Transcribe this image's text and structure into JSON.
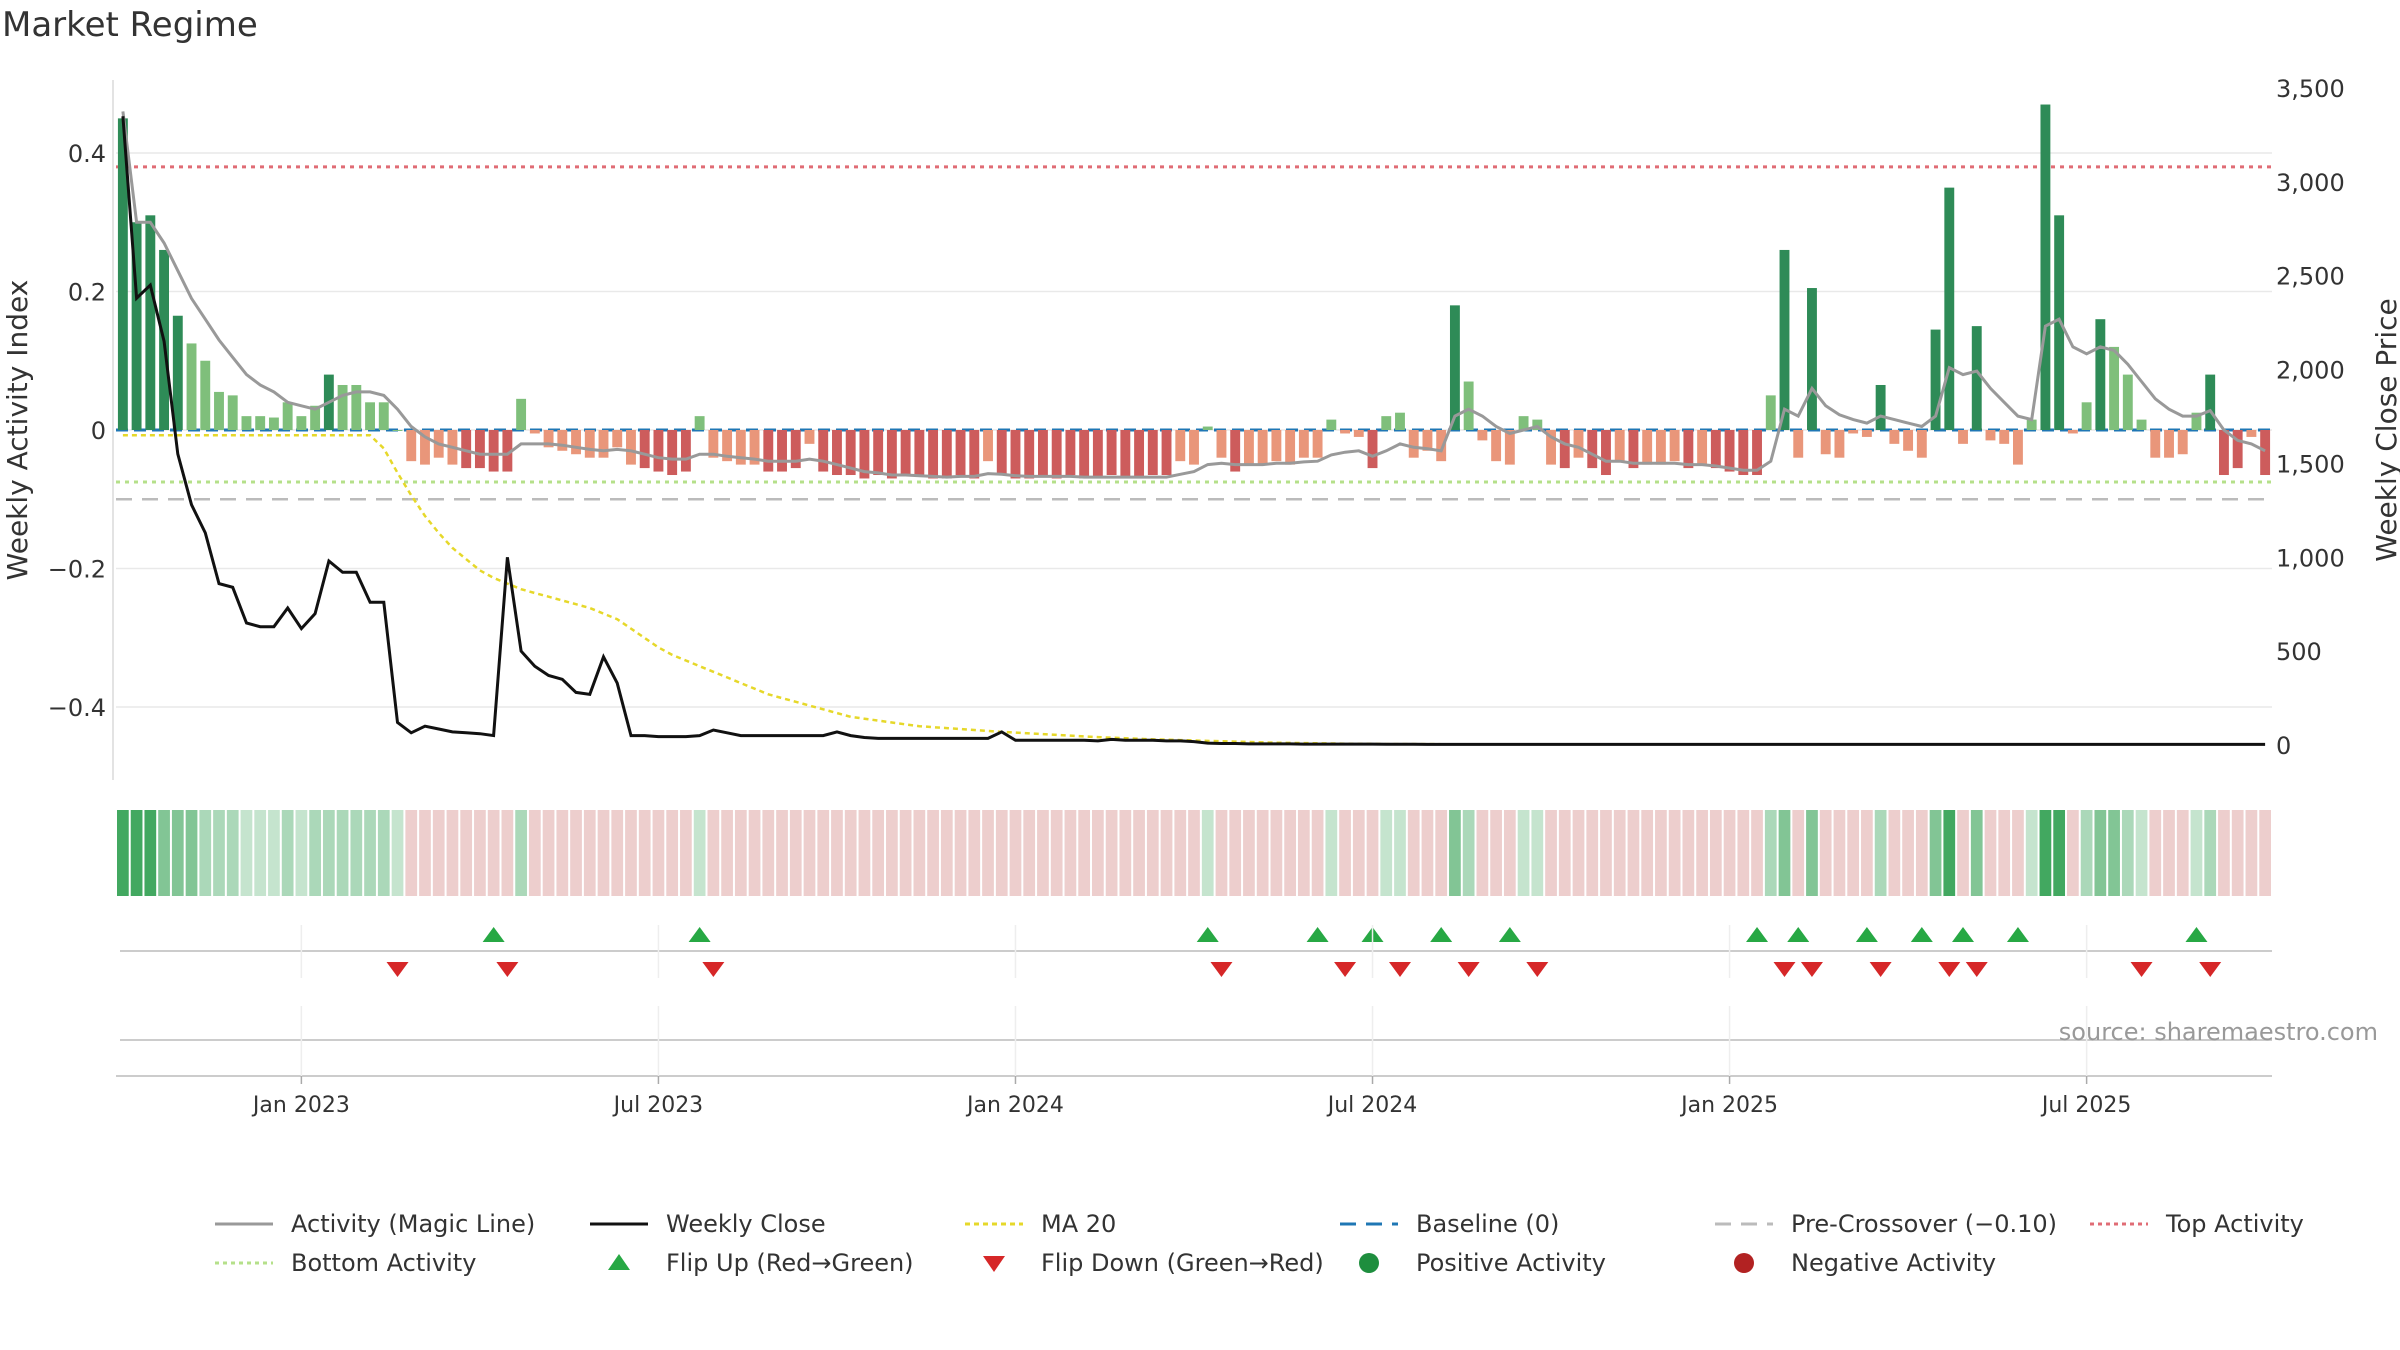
{
  "chart_data": {
    "type": "bar",
    "title": "Market Regime",
    "source_note": "source: sharemaestro.com",
    "ylabel_left": "Weekly Activity Index",
    "ylabel_right": "Weekly Close Price",
    "ylim_left": [
      -0.5,
      0.5
    ],
    "ylim_right": [
      0,
      3500
    ],
    "left_ticks": [
      {
        "v": 0.4,
        "label": "0.4"
      },
      {
        "v": 0.2,
        "label": "0.2"
      },
      {
        "v": 0,
        "label": "0"
      },
      {
        "v": -0.2,
        "label": "−0.2"
      },
      {
        "v": -0.4,
        "label": "−0.4"
      }
    ],
    "right_ticks": [
      {
        "v": 3500,
        "label": "3,500"
      },
      {
        "v": 3000,
        "label": "3,000"
      },
      {
        "v": 2500,
        "label": "2,500"
      },
      {
        "v": 2000,
        "label": "2,000"
      },
      {
        "v": 1500,
        "label": "1,500"
      },
      {
        "v": 1000,
        "label": "1,000"
      },
      {
        "v": 500,
        "label": "500"
      },
      {
        "v": 0,
        "label": "0"
      }
    ],
    "x_ticks": [
      {
        "week": 13,
        "label": "Jan 2023"
      },
      {
        "week": 39,
        "label": "Jul 2023"
      },
      {
        "week": 65,
        "label": "Jan 2024"
      },
      {
        "week": 91,
        "label": "Jul 2024"
      },
      {
        "week": 117,
        "label": "Jan 2025"
      },
      {
        "week": 143,
        "label": "Jul 2025"
      }
    ],
    "n_weeks": 157,
    "reference_lines": {
      "top_activity": 0.38,
      "bottom_activity": -0.075,
      "pre_crossover": -0.1,
      "baseline": 0
    },
    "activity": [
      0.45,
      0.3,
      0.31,
      0.26,
      0.165,
      0.125,
      0.1,
      0.055,
      0.05,
      0.02,
      0.02,
      0.018,
      0.04,
      0.02,
      0.035,
      0.08,
      0.065,
      0.065,
      0.04,
      0.04,
      0,
      -0.045,
      -0.05,
      -0.04,
      -0.05,
      -0.055,
      -0.055,
      -0.06,
      -0.06,
      0.045,
      -0.005,
      -0.025,
      -0.03,
      -0.035,
      -0.04,
      -0.04,
      -0.025,
      -0.05,
      -0.055,
      -0.06,
      -0.065,
      -0.06,
      0.02,
      -0.04,
      -0.045,
      -0.05,
      -0.05,
      -0.06,
      -0.06,
      -0.055,
      -0.02,
      -0.06,
      -0.065,
      -0.065,
      -0.07,
      -0.065,
      -0.07,
      -0.065,
      -0.065,
      -0.07,
      -0.07,
      -0.065,
      -0.07,
      -0.045,
      -0.065,
      -0.07,
      -0.07,
      -0.065,
      -0.07,
      -0.065,
      -0.07,
      -0.07,
      -0.065,
      -0.07,
      -0.07,
      -0.065,
      -0.065,
      -0.045,
      -0.05,
      0.005,
      -0.04,
      -0.06,
      -0.05,
      -0.05,
      -0.045,
      -0.05,
      -0.04,
      -0.04,
      0.015,
      -0.005,
      -0.01,
      -0.055,
      0.02,
      0.025,
      -0.04,
      -0.03,
      -0.045,
      0.18,
      0.07,
      -0.015,
      -0.045,
      -0.05,
      0.02,
      0.015,
      -0.05,
      -0.055,
      -0.04,
      -0.055,
      -0.065,
      -0.045,
      -0.055,
      -0.05,
      -0.05,
      -0.045,
      -0.055,
      -0.05,
      -0.055,
      -0.06,
      -0.065,
      -0.065,
      0.05,
      0.26,
      -0.04,
      0.205,
      -0.035,
      -0.04,
      -0.005,
      -0.01,
      0.065,
      -0.02,
      -0.03,
      -0.04,
      0.145,
      0.35,
      -0.02,
      0.15,
      -0.015,
      -0.02,
      -0.05,
      0.015,
      0.47,
      0.31,
      -0.005,
      0.04,
      0.16,
      0.12,
      0.08,
      0.015,
      -0.04,
      -0.04,
      -0.035,
      0.025,
      0.08,
      -0.065,
      -0.055,
      -0.01,
      -0.065
    ],
    "magic_line": [
      0.46,
      0.3,
      0.3,
      0.27,
      0.23,
      0.19,
      0.16,
      0.13,
      0.105,
      0.08,
      0.065,
      0.055,
      0.04,
      0.035,
      0.03,
      0.04,
      0.05,
      0.055,
      0.055,
      0.05,
      0.03,
      0.005,
      -0.01,
      -0.02,
      -0.025,
      -0.03,
      -0.035,
      -0.035,
      -0.035,
      -0.02,
      -0.02,
      -0.02,
      -0.022,
      -0.025,
      -0.028,
      -0.03,
      -0.028,
      -0.03,
      -0.035,
      -0.04,
      -0.042,
      -0.042,
      -0.035,
      -0.035,
      -0.038,
      -0.04,
      -0.042,
      -0.045,
      -0.045,
      -0.045,
      -0.042,
      -0.045,
      -0.05,
      -0.055,
      -0.06,
      -0.062,
      -0.065,
      -0.065,
      -0.066,
      -0.067,
      -0.068,
      -0.067,
      -0.067,
      -0.063,
      -0.064,
      -0.066,
      -0.067,
      -0.067,
      -0.067,
      -0.067,
      -0.068,
      -0.068,
      -0.068,
      -0.068,
      -0.068,
      -0.068,
      -0.068,
      -0.064,
      -0.06,
      -0.05,
      -0.048,
      -0.05,
      -0.05,
      -0.05,
      -0.048,
      -0.048,
      -0.046,
      -0.045,
      -0.036,
      -0.032,
      -0.03,
      -0.038,
      -0.03,
      -0.02,
      -0.025,
      -0.027,
      -0.03,
      0.02,
      0.03,
      0.02,
      0.005,
      -0.005,
      0,
      0.005,
      -0.01,
      -0.02,
      -0.025,
      -0.035,
      -0.045,
      -0.045,
      -0.048,
      -0.048,
      -0.048,
      -0.048,
      -0.05,
      -0.05,
      -0.052,
      -0.055,
      -0.058,
      -0.058,
      -0.045,
      0.03,
      0.02,
      0.06,
      0.035,
      0.022,
      0.015,
      0.01,
      0.02,
      0.015,
      0.01,
      0.005,
      0.02,
      0.09,
      0.08,
      0.085,
      0.06,
      0.04,
      0.02,
      0.015,
      0.15,
      0.16,
      0.12,
      0.11,
      0.12,
      0.115,
      0.095,
      0.07,
      0.045,
      0.03,
      0.02,
      0.02,
      0.028,
      0.0,
      -0.015,
      -0.02,
      -0.03
    ],
    "weekly_close": [
      3350,
      2380,
      2450,
      2150,
      1550,
      1280,
      1130,
      860,
      840,
      650,
      630,
      630,
      730,
      620,
      700,
      980,
      920,
      920,
      760,
      760,
      120,
      65,
      100,
      85,
      70,
      65,
      60,
      50,
      1000,
      500,
      420,
      370,
      350,
      280,
      270,
      470,
      330,
      50,
      50,
      45,
      45,
      45,
      50,
      80,
      65,
      50,
      50,
      50,
      50,
      50,
      50,
      50,
      70,
      50,
      40,
      35,
      35,
      35,
      35,
      35,
      35,
      35,
      35,
      35,
      70,
      25,
      25,
      25,
      25,
      25,
      25,
      22,
      30,
      25,
      25,
      25,
      22,
      22,
      18,
      10,
      8,
      8,
      6,
      6,
      6,
      6,
      5,
      5,
      5,
      5,
      5,
      5,
      4,
      4,
      4,
      3,
      3,
      3,
      3,
      3,
      3,
      3,
      3,
      3,
      3,
      3,
      3,
      3,
      3,
      3,
      3,
      3,
      3,
      3,
      3,
      3,
      3,
      3,
      3,
      3,
      3,
      3,
      3,
      3,
      3,
      3,
      3,
      3,
      3,
      3,
      3,
      3,
      3,
      3,
      3,
      3,
      3,
      3,
      3,
      3,
      3,
      3,
      3,
      3,
      3,
      3,
      3,
      3,
      3,
      3,
      3,
      3,
      3,
      3,
      3,
      3,
      3
    ],
    "ma20": [
      1650,
      1650,
      1650,
      1650,
      1650,
      1650,
      1650,
      1650,
      1650,
      1650,
      1650,
      1650,
      1650,
      1650,
      1650,
      1650,
      1650,
      1650,
      1650,
      1580,
      1450,
      1330,
      1220,
      1130,
      1050,
      990,
      930,
      890,
      860,
      830,
      810,
      790,
      770,
      750,
      730,
      700,
      670,
      620,
      570,
      520,
      480,
      450,
      420,
      390,
      360,
      330,
      300,
      270,
      250,
      230,
      210,
      190,
      170,
      150,
      140,
      130,
      120,
      110,
      100,
      95,
      90,
      85,
      80,
      75,
      70,
      66,
      62,
      58,
      54,
      50,
      46,
      42,
      39,
      36,
      33,
      30,
      28,
      26,
      24,
      22,
      20,
      18,
      16,
      14,
      12,
      11,
      10,
      9,
      8,
      7,
      6,
      6,
      5,
      5,
      5,
      5,
      4,
      4,
      4,
      4,
      4,
      4,
      4,
      4,
      4,
      4,
      4,
      4,
      4,
      4,
      4,
      4,
      4,
      4,
      4,
      4,
      4,
      4,
      4,
      4,
      4,
      4,
      4,
      4,
      4,
      4,
      4,
      4,
      4,
      4,
      4,
      4,
      4,
      4,
      4,
      4,
      4,
      4,
      4,
      4,
      4,
      4,
      4,
      4,
      4,
      4,
      4,
      4,
      4,
      4,
      4,
      4,
      4,
      4
    ],
    "flip_up_weeks": [
      27,
      42,
      79,
      87,
      91,
      96,
      101,
      119,
      122,
      127,
      131,
      134,
      138,
      151
    ],
    "flip_down_weeks": [
      20,
      28,
      43,
      80,
      89,
      93,
      98,
      103,
      121,
      123,
      128,
      133,
      135,
      147,
      152
    ],
    "legend": [
      {
        "key": "magic",
        "label": "Activity (Magic Line)"
      },
      {
        "key": "close",
        "label": "Weekly Close"
      },
      {
        "key": "ma20",
        "label": "MA 20"
      },
      {
        "key": "baseline",
        "label": "Baseline (0)"
      },
      {
        "key": "precross",
        "label": "Pre-Crossover (−0.10)"
      },
      {
        "key": "top",
        "label": "Top Activity"
      },
      {
        "key": "bottom",
        "label": "Bottom Activity"
      },
      {
        "key": "flipup",
        "label": "Flip Up (Red→Green)"
      },
      {
        "key": "flipdown",
        "label": "Flip Down (Green→Red)"
      },
      {
        "key": "pos",
        "label": "Positive Activity"
      },
      {
        "key": "neg",
        "label": "Negative Activity"
      }
    ]
  },
  "colors": {
    "pos_strong": "#2e8b57",
    "pos_light": "#7fbf7b",
    "neg_strong": "#cd5c5c",
    "neg_light": "#e9967a",
    "magic": "#999999",
    "close": "#111111",
    "ma20": "#e6d82a",
    "baseline": "#1f77b4",
    "precross": "#bbbbbb",
    "top": "#e06c75",
    "bottom": "#b5e08a",
    "flip_up": "#27a844",
    "flip_down": "#d62728",
    "pos_dot": "#1e8e3e",
    "neg_dot": "#b22222"
  }
}
